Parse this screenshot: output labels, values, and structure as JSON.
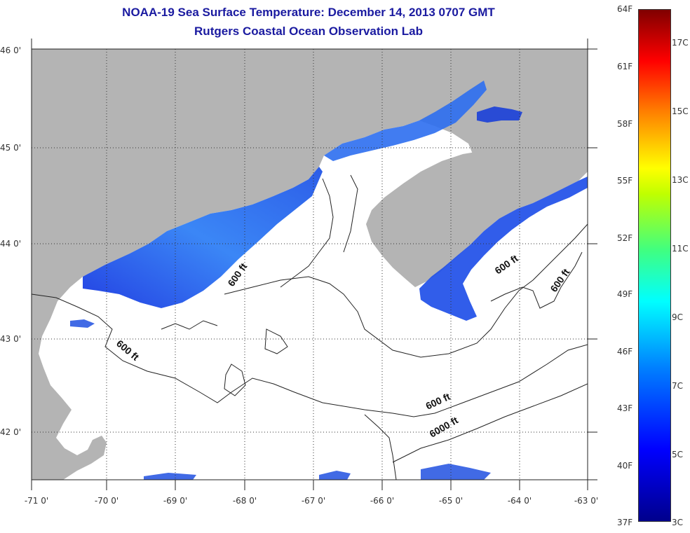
{
  "title": {
    "line1": "NOAA-19 Sea Surface Temperature:  December 14, 2013 0707 GMT",
    "line2": "Rutgers Coastal Ocean Observation Lab"
  },
  "axes": {
    "x_labels": [
      "-71 0'",
      "-70 0'",
      "-69 0'",
      "-68 0'",
      "-67 0'",
      "-66 0'",
      "-65 0'",
      "-64 0'",
      "-63 0'"
    ],
    "y_labels": [
      "46 0'",
      "45 0'",
      "44 0'",
      "43 0'",
      "42 0'"
    ]
  },
  "contour_labels": [
    "600 ft",
    "600 ft",
    "600 ft",
    "600 ft",
    "600 ft",
    "6000 ft"
  ],
  "colorbar": {
    "f_labels": [
      "64F",
      "61F",
      "58F",
      "55F",
      "52F",
      "49F",
      "46F",
      "43F",
      "40F",
      "37F"
    ],
    "c_labels": [
      "17C",
      "15C",
      "13C",
      "11C",
      "9C",
      "7C",
      "5C",
      "3C"
    ]
  },
  "colors": {
    "land": "#b4b4b4",
    "water": "#ffffff",
    "title": "#1a1aa0"
  }
}
